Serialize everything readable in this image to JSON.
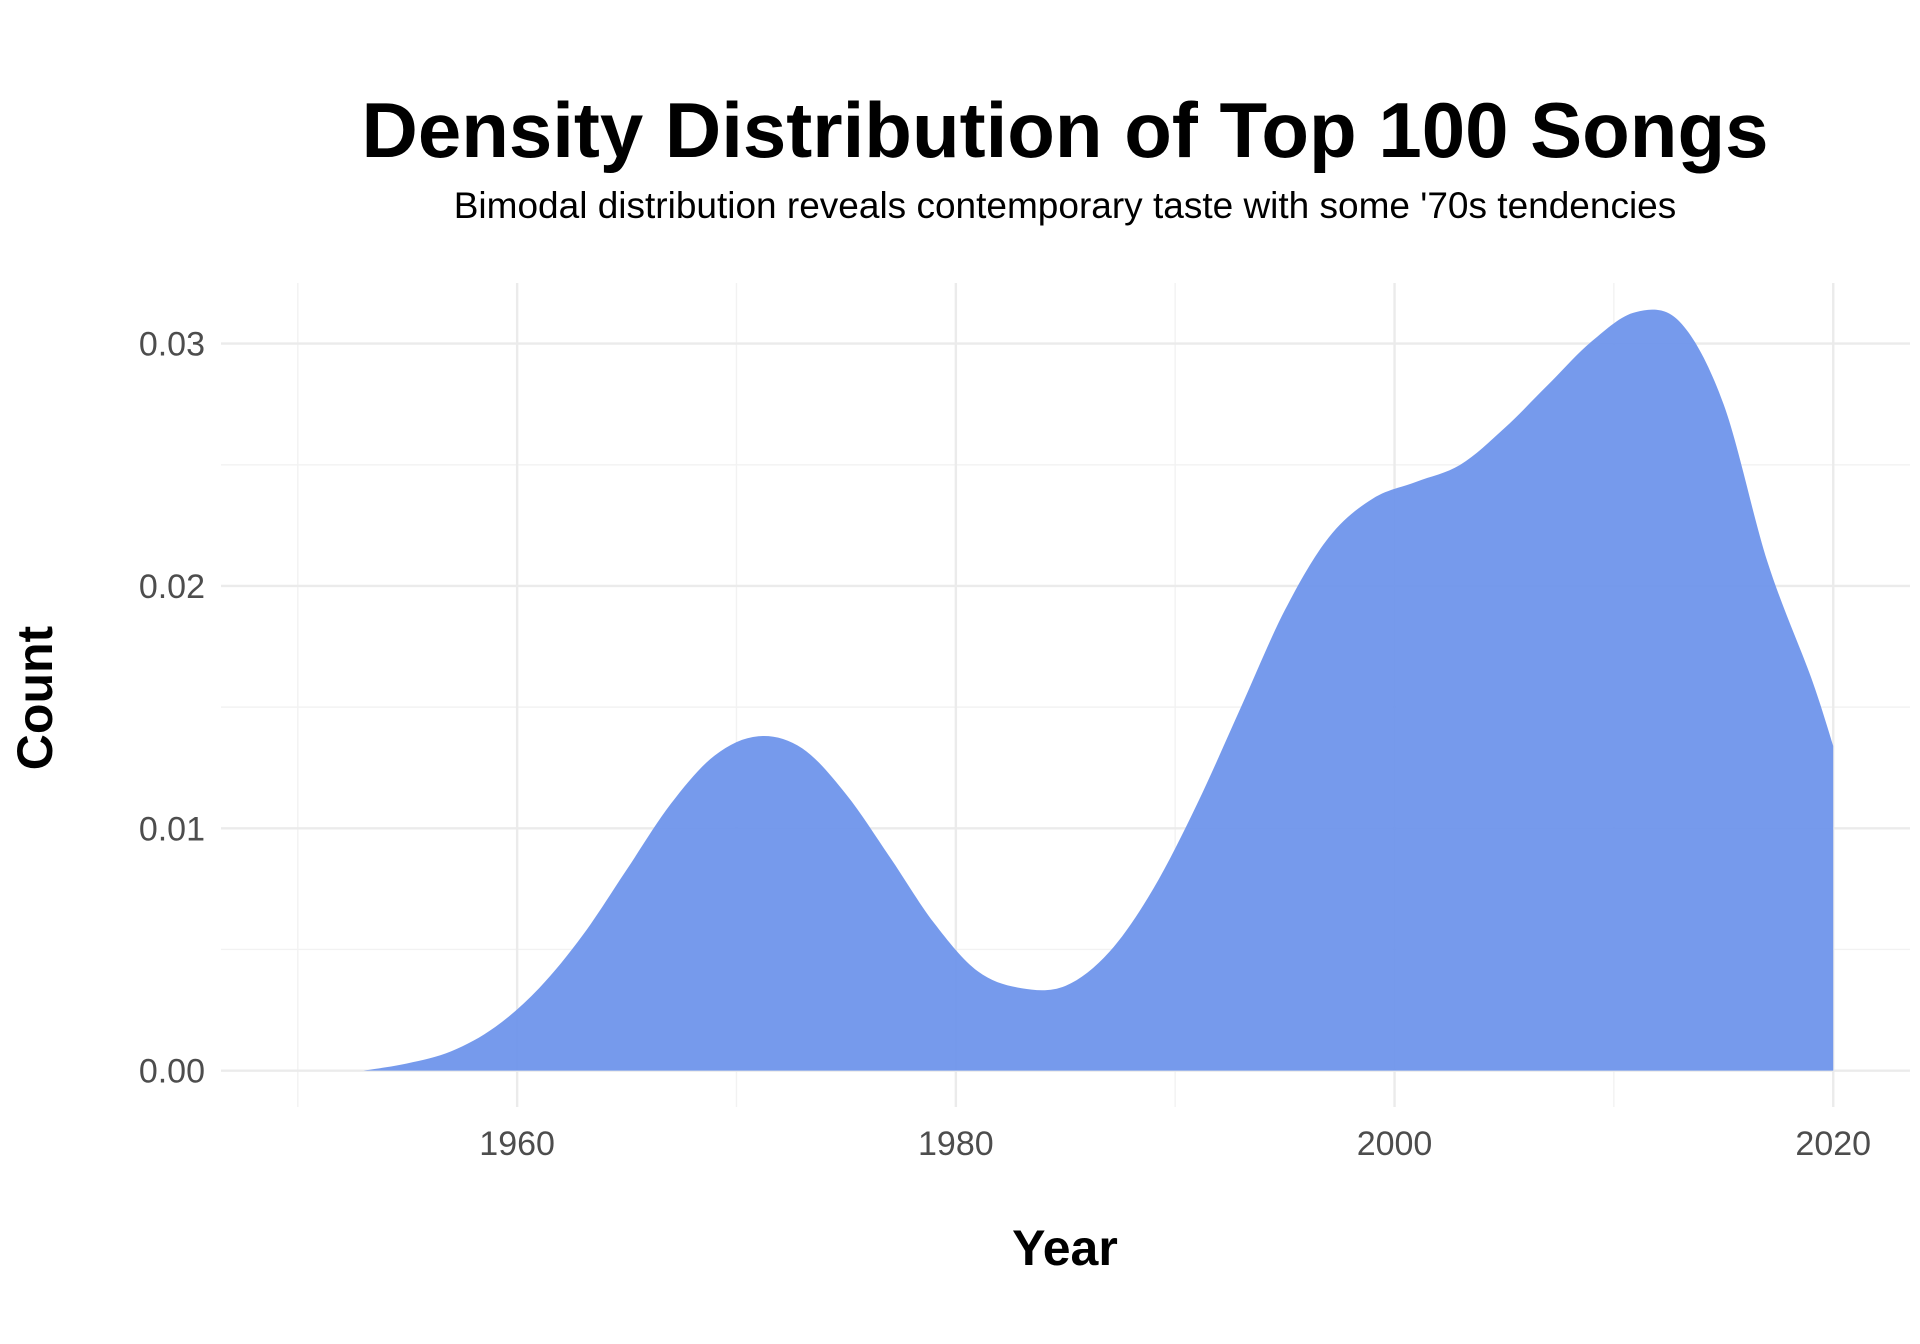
{
  "chart_data": {
    "type": "area",
    "title": "Density Distribution of Top 100 Songs",
    "subtitle": "Bimodal distribution reveals contemporary taste with some '70s tendencies",
    "xlabel": "Year",
    "ylabel": "Count",
    "xlim": [
      1946.5,
      2023.5
    ],
    "ylim": [
      -0.0015,
      0.0325
    ],
    "grid": true,
    "legend": "none",
    "fill_color": "#6d94eb",
    "x_ticks": [
      1960,
      1980,
      2000,
      2020
    ],
    "x_tick_labels": [
      "1960",
      "1980",
      "2000",
      "2020"
    ],
    "y_ticks": [
      0.0,
      0.01,
      0.02,
      0.03
    ],
    "y_tick_labels": [
      "0.00",
      "0.01",
      "0.02",
      "0.03"
    ],
    "series": [
      {
        "x": [
          1953,
          1955,
          1957,
          1959,
          1961,
          1963,
          1965,
          1967,
          1969,
          1971,
          1973,
          1975,
          1977,
          1979,
          1981,
          1983,
          1985,
          1987,
          1989,
          1991,
          1993,
          1995,
          1997,
          1999,
          2001,
          2003,
          2005,
          2007,
          2009,
          2011,
          2013,
          2015,
          2017,
          2019,
          2020
        ],
        "y": [
          0.0,
          0.0003,
          0.0008,
          0.0018,
          0.0034,
          0.0056,
          0.0083,
          0.011,
          0.013,
          0.0138,
          0.0133,
          0.0114,
          0.0088,
          0.0061,
          0.0041,
          0.0034,
          0.0035,
          0.0049,
          0.0075,
          0.011,
          0.015,
          0.019,
          0.022,
          0.0236,
          0.0243,
          0.025,
          0.0265,
          0.0283,
          0.0301,
          0.0313,
          0.0309,
          0.0275,
          0.021,
          0.0162,
          0.0134
        ]
      }
    ]
  }
}
